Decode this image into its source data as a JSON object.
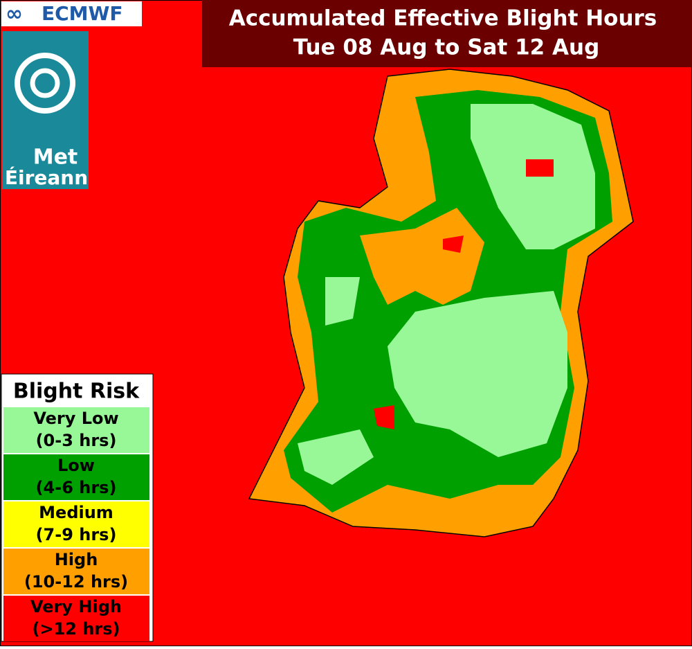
{
  "header": {
    "title": [
      "Accumulated Effective Blight Hours",
      "Tue 08 Aug to Sat 12 Aug"
    ]
  },
  "logos": {
    "ecmwf": "ECMWF",
    "met": "Met",
    "eireann": "Éireann"
  },
  "legend": {
    "title": "Blight Risk",
    "items": [
      {
        "label": "Very Low",
        "range": "(0-3 hrs)",
        "color": "#98f898"
      },
      {
        "label": "Low",
        "range": "(4-6 hrs)",
        "color": "#00a000"
      },
      {
        "label": "Medium",
        "range": "(7-9 hrs)",
        "color": "#ffff00"
      },
      {
        "label": "High",
        "range": "(10-12 hrs)",
        "color": "#ffa000"
      },
      {
        "label": "Very High",
        "range": "(>12 hrs)",
        "color": "#ff0000"
      }
    ]
  }
}
